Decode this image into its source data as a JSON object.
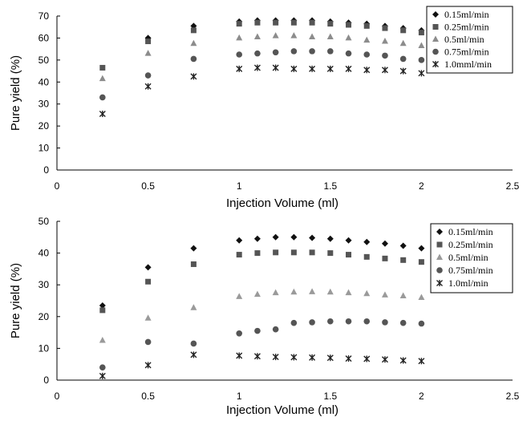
{
  "chart_data": [
    {
      "type": "scatter",
      "title": "",
      "xlabel": "Injection Volume (ml)",
      "ylabel": "Pure yield (%)",
      "xlim": [
        0,
        2.5
      ],
      "ylim": [
        0,
        70
      ],
      "xticks": [
        "0",
        "0.5",
        "1",
        "1.5",
        "2",
        "2.5"
      ],
      "yticks": [
        "0",
        "10",
        "20",
        "30",
        "40",
        "50",
        "60",
        "70"
      ],
      "legend_position": "top-right",
      "grid": false,
      "series": [
        {
          "name": "0.15ml/min",
          "marker": "diamond",
          "color": "#111111",
          "x": [
            0.5,
            0.75,
            1.0,
            1.1,
            1.2,
            1.3,
            1.4,
            1.5,
            1.6,
            1.7,
            1.8,
            1.9,
            2.0
          ],
          "y": [
            60,
            65.5,
            67.5,
            68,
            68,
            68,
            68,
            67.5,
            67,
            66.5,
            65.5,
            64.5,
            63.5
          ]
        },
        {
          "name": "0.25ml/min",
          "marker": "square",
          "color": "#555555",
          "x": [
            0.25,
            0.5,
            0.75,
            1.0,
            1.1,
            1.2,
            1.3,
            1.4,
            1.5,
            1.6,
            1.7,
            1.8,
            1.9,
            2.0
          ],
          "y": [
            46.5,
            58.5,
            63.5,
            66.5,
            67,
            67,
            67,
            67,
            66.5,
            66,
            65.5,
            64.5,
            63.5,
            62.5
          ]
        },
        {
          "name": "0.5ml/min",
          "marker": "triangle",
          "color": "#8c8c8c",
          "x": [
            0.25,
            0.5,
            0.75,
            1.0,
            1.1,
            1.2,
            1.3,
            1.4,
            1.5,
            1.6,
            1.7,
            1.8,
            1.9,
            2.0
          ],
          "y": [
            41.5,
            53,
            57.5,
            60,
            60.5,
            61,
            61,
            60.5,
            60.5,
            60,
            59,
            58.5,
            57.5,
            56.5
          ]
        },
        {
          "name": "0.75ml/min",
          "marker": "circle",
          "color": "#555555",
          "x": [
            0.25,
            0.5,
            0.75,
            1.0,
            1.1,
            1.2,
            1.3,
            1.4,
            1.5,
            1.6,
            1.7,
            1.8,
            1.9,
            2.0
          ],
          "y": [
            33,
            43,
            50.5,
            52.5,
            53,
            53.5,
            54,
            54,
            54,
            53,
            52.5,
            52,
            50.5,
            50
          ]
        },
        {
          "name": "1.0mml/min",
          "marker": "star",
          "color": "#222222",
          "x": [
            0.25,
            0.5,
            0.75,
            1.0,
            1.1,
            1.2,
            1.3,
            1.4,
            1.5,
            1.6,
            1.7,
            1.8,
            1.9,
            2.0
          ],
          "y": [
            25.5,
            38,
            42.5,
            46,
            46.5,
            46.5,
            46,
            46,
            46,
            46,
            45.5,
            45.5,
            45,
            44
          ]
        }
      ]
    },
    {
      "type": "scatter",
      "title": "",
      "xlabel": "Injection Volume (ml)",
      "ylabel": "Pure yield (%)",
      "xlim": [
        0,
        2.5
      ],
      "ylim": [
        0,
        50
      ],
      "xticks": [
        "0",
        "0.5",
        "1",
        "1.5",
        "2",
        "2.5"
      ],
      "yticks": [
        "0",
        "10",
        "20",
        "30",
        "40",
        "50"
      ],
      "legend_position": "top-right",
      "grid": false,
      "series": [
        {
          "name": "0.15ml/min",
          "marker": "diamond",
          "color": "#111111",
          "x": [
            0.25,
            0.5,
            0.75,
            1.0,
            1.1,
            1.2,
            1.3,
            1.4,
            1.5,
            1.6,
            1.7,
            1.8,
            1.9,
            2.0
          ],
          "y": [
            23.5,
            35.5,
            41.5,
            44,
            44.5,
            45,
            45,
            44.8,
            44.5,
            44,
            43.5,
            43,
            42.3,
            41.5
          ]
        },
        {
          "name": "0.25ml/min",
          "marker": "square",
          "color": "#555555",
          "x": [
            0.25,
            0.5,
            0.75,
            1.0,
            1.1,
            1.2,
            1.3,
            1.4,
            1.5,
            1.6,
            1.7,
            1.8,
            1.9,
            2.0
          ],
          "y": [
            22,
            31,
            36.5,
            39.5,
            40,
            40.2,
            40.2,
            40.2,
            40,
            39.5,
            38.8,
            38.3,
            37.8,
            37.2
          ]
        },
        {
          "name": "0.5ml/min",
          "marker": "triangle",
          "color": "#9a9a9a",
          "x": [
            0.25,
            0.5,
            0.75,
            1.0,
            1.1,
            1.2,
            1.3,
            1.4,
            1.5,
            1.6,
            1.7,
            1.8,
            1.9,
            2.0
          ],
          "y": [
            12.5,
            19.5,
            22.8,
            26.3,
            27,
            27.5,
            27.7,
            27.8,
            27.7,
            27.5,
            27.2,
            26.8,
            26.5,
            26
          ]
        },
        {
          "name": "0.75ml/min",
          "marker": "circle",
          "color": "#555555",
          "x": [
            0.25,
            0.5,
            0.75,
            1.0,
            1.1,
            1.2,
            1.3,
            1.4,
            1.5,
            1.6,
            1.7,
            1.8,
            1.9,
            2.0
          ],
          "y": [
            4,
            12,
            11.5,
            14.7,
            15.5,
            16,
            18,
            18.2,
            18.5,
            18.5,
            18.5,
            18.2,
            18,
            17.8
          ]
        },
        {
          "name": "1.0ml/min",
          "marker": "star",
          "color": "#222222",
          "x": [
            0.25,
            0.5,
            0.75,
            1.0,
            1.1,
            1.2,
            1.3,
            1.4,
            1.5,
            1.6,
            1.7,
            1.8,
            1.9,
            2.0
          ],
          "y": [
            1.3,
            4.7,
            8,
            7.7,
            7.5,
            7.3,
            7.2,
            7.1,
            7,
            6.8,
            6.7,
            6.5,
            6.2,
            6
          ]
        }
      ]
    }
  ]
}
